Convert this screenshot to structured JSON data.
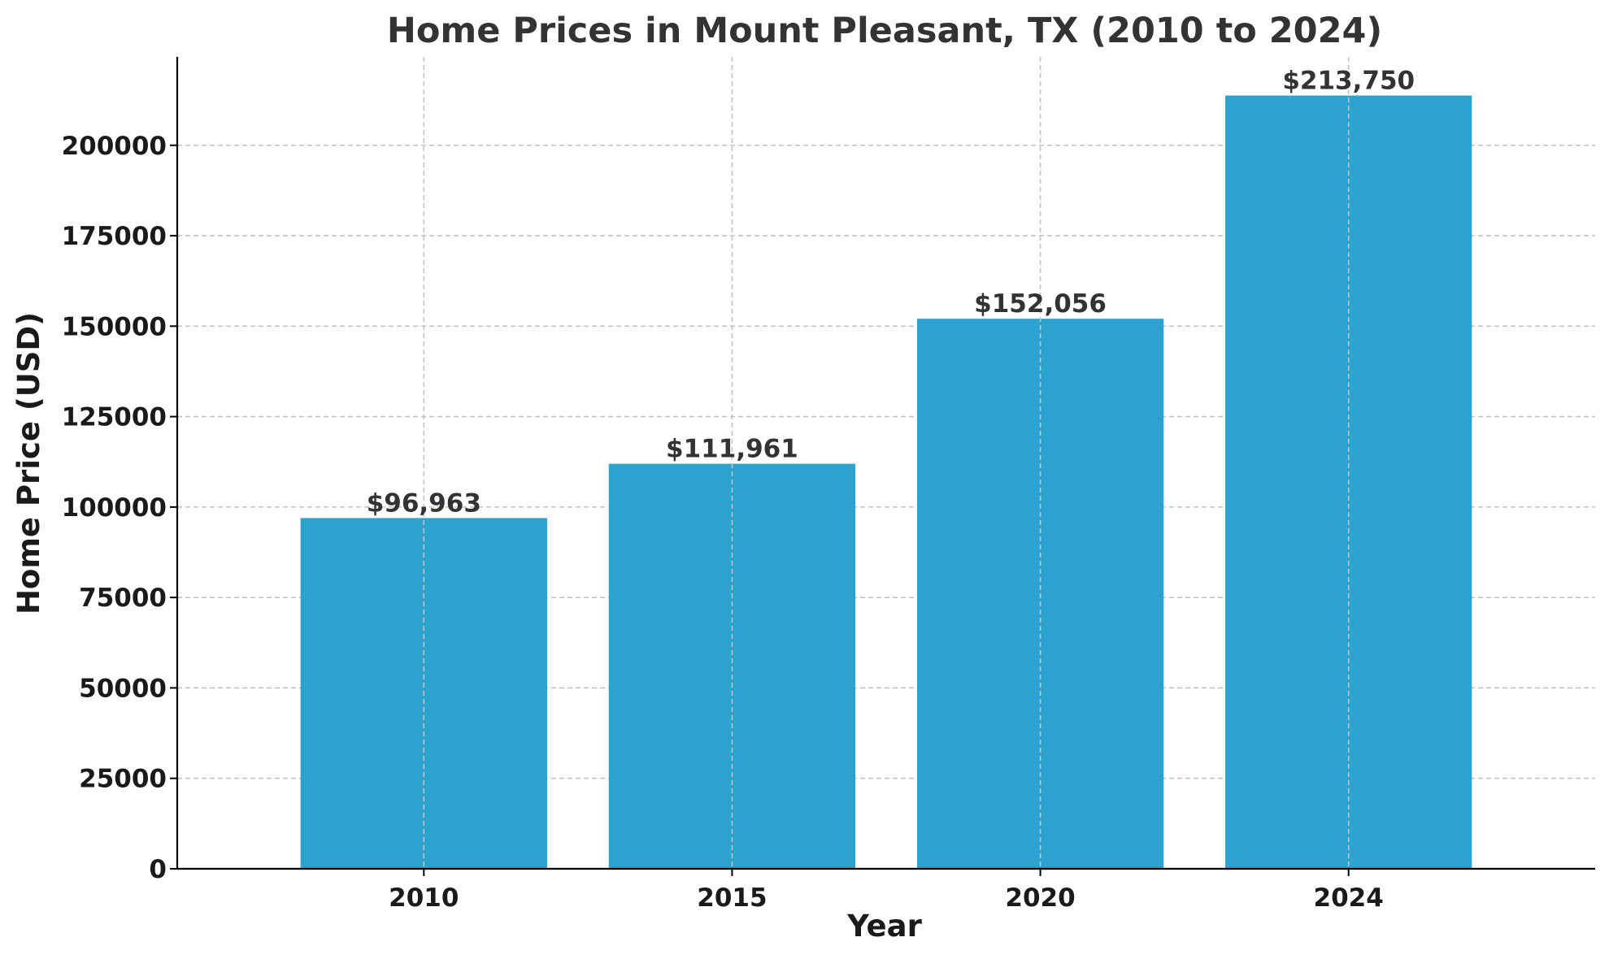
{
  "chart_data": {
    "type": "bar",
    "title": "Home Prices in Mount Pleasant, TX (2010 to 2024)",
    "xlabel": "Year",
    "ylabel": "Home Price (USD)",
    "categories": [
      "2010",
      "2015",
      "2020",
      "2024"
    ],
    "values": [
      96963,
      111961,
      152056,
      213750
    ],
    "data_labels": [
      "$96,963",
      "$111,961",
      "$152,056",
      "$213,750"
    ],
    "y_ticks": [
      0,
      25000,
      50000,
      75000,
      100000,
      125000,
      150000,
      175000,
      200000
    ],
    "y_tick_labels": [
      "0",
      "25000",
      "50000",
      "75000",
      "100000",
      "125000",
      "150000",
      "175000",
      "200000"
    ],
    "ylim": [
      0,
      224437.5
    ],
    "grid": true,
    "legend": "none",
    "bar_color": "#2ca2cf"
  }
}
